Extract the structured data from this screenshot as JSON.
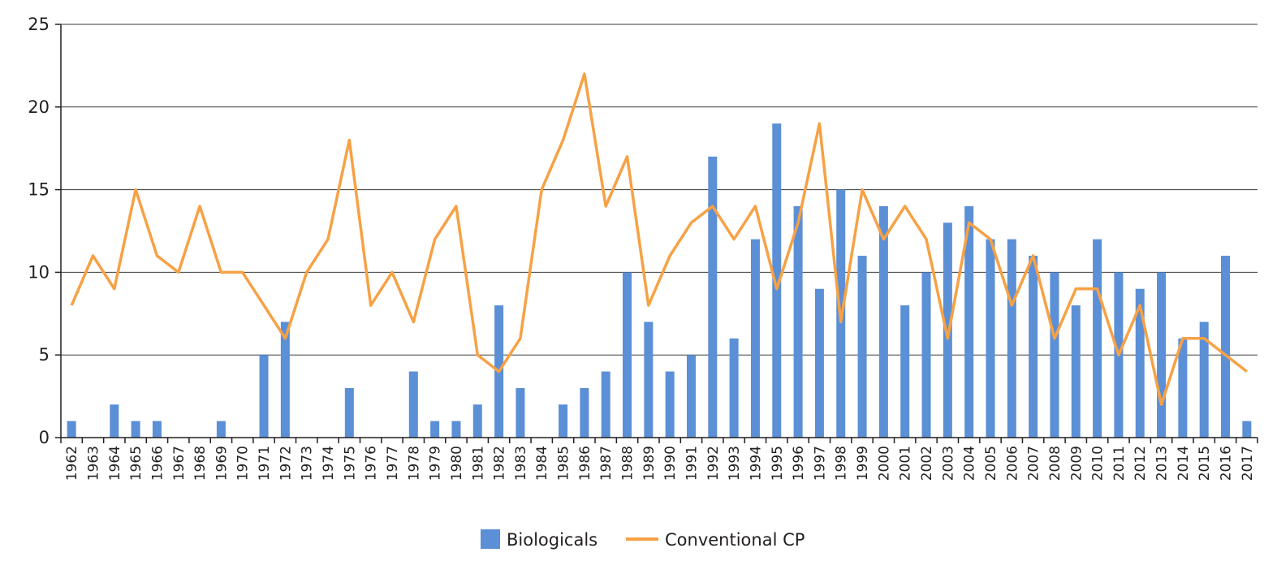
{
  "chart_data": {
    "type": "bar",
    "categories": [
      "1962",
      "1963",
      "1964",
      "1965",
      "1966",
      "1967",
      "1968",
      "1969",
      "1970",
      "1971",
      "1972",
      "1973",
      "1974",
      "1975",
      "1976",
      "1977",
      "1978",
      "1979",
      "1980",
      "1981",
      "1982",
      "1983",
      "1984",
      "1985",
      "1986",
      "1987",
      "1988",
      "1989",
      "1990",
      "1991",
      "1992",
      "1993",
      "1994",
      "1995",
      "1996",
      "1997",
      "1998",
      "1999",
      "2000",
      "2001",
      "2002",
      "2003",
      "2004",
      "2005",
      "2006",
      "2007",
      "2008",
      "2009",
      "2010",
      "2011",
      "2012",
      "2013",
      "2014",
      "2015",
      "2016",
      "2017"
    ],
    "series": [
      {
        "name": "Biologicals",
        "type": "bar",
        "color": "#5b8fd6",
        "values": [
          1,
          0,
          2,
          1,
          1,
          0,
          0,
          1,
          0,
          5,
          7,
          0,
          0,
          3,
          0,
          0,
          4,
          1,
          1,
          2,
          8,
          3,
          0,
          2,
          3,
          4,
          10,
          7,
          4,
          5,
          17,
          6,
          12,
          19,
          14,
          9,
          15,
          11,
          14,
          8,
          10,
          13,
          14,
          12,
          12,
          11,
          10,
          8,
          12,
          10,
          9,
          10,
          6,
          7,
          11,
          1
        ]
      },
      {
        "name": "Conventional CP",
        "type": "line",
        "color": "#f7a145",
        "values": [
          8,
          11,
          9,
          15,
          11,
          10,
          14,
          10,
          10,
          8,
          6,
          10,
          12,
          18,
          8,
          10,
          7,
          12,
          14,
          5,
          4,
          6,
          15,
          18,
          22,
          14,
          17,
          8,
          11,
          13,
          14,
          12,
          14,
          9,
          13,
          19,
          7,
          15,
          12,
          14,
          12,
          6,
          13,
          12,
          8,
          11,
          6,
          9,
          9,
          5,
          8,
          2,
          6,
          6,
          5,
          4
        ]
      }
    ],
    "y_ticks": [
      "0",
      "5",
      "10",
      "15",
      "20",
      "25"
    ],
    "ylim": [
      0,
      25
    ],
    "grid": true,
    "legend_position": "bottom"
  }
}
